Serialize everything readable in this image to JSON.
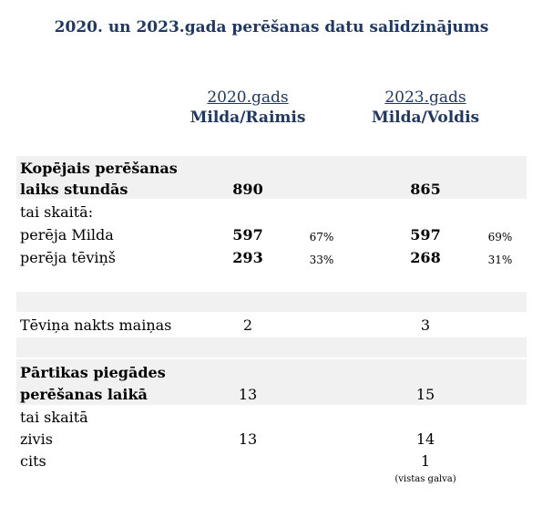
{
  "title": "2020. un 2023.gada perēšanas datu salīdzinājums",
  "columns": [
    {
      "year": "2020.gads",
      "names": "Milda/Raimis"
    },
    {
      "year": "2023.gads",
      "names": "Milda/Voldis"
    }
  ],
  "sections": {
    "total": {
      "label_line1": "Kopējais perēšanas",
      "label_line2": "laiks stundās",
      "v2020": "890",
      "v2023": "865",
      "breakdown_label": "tai skaitā:",
      "rows": [
        {
          "label": "perēja Milda",
          "v2020": "597",
          "p2020": "67%",
          "v2023": "597",
          "p2023": "69%"
        },
        {
          "label": "perēja tēviņš",
          "v2020": "293",
          "p2020": "33%",
          "v2023": "268",
          "p2023": "31%"
        }
      ]
    },
    "night": {
      "label": "Tēviņa nakts maiņas",
      "v2020": "2",
      "v2023": "3"
    },
    "food": {
      "label_line1": "Pārtikas piegādes",
      "label_line2": "perēšanas laikā",
      "v2020": "13",
      "v2023": "15",
      "breakdown_label": "tai skaitā",
      "rows": [
        {
          "label": "zivis",
          "v2020": "13",
          "v2023": "14"
        },
        {
          "label": "cits",
          "v2020": "",
          "v2023": "1"
        }
      ],
      "note": "(vistas galva)"
    }
  }
}
